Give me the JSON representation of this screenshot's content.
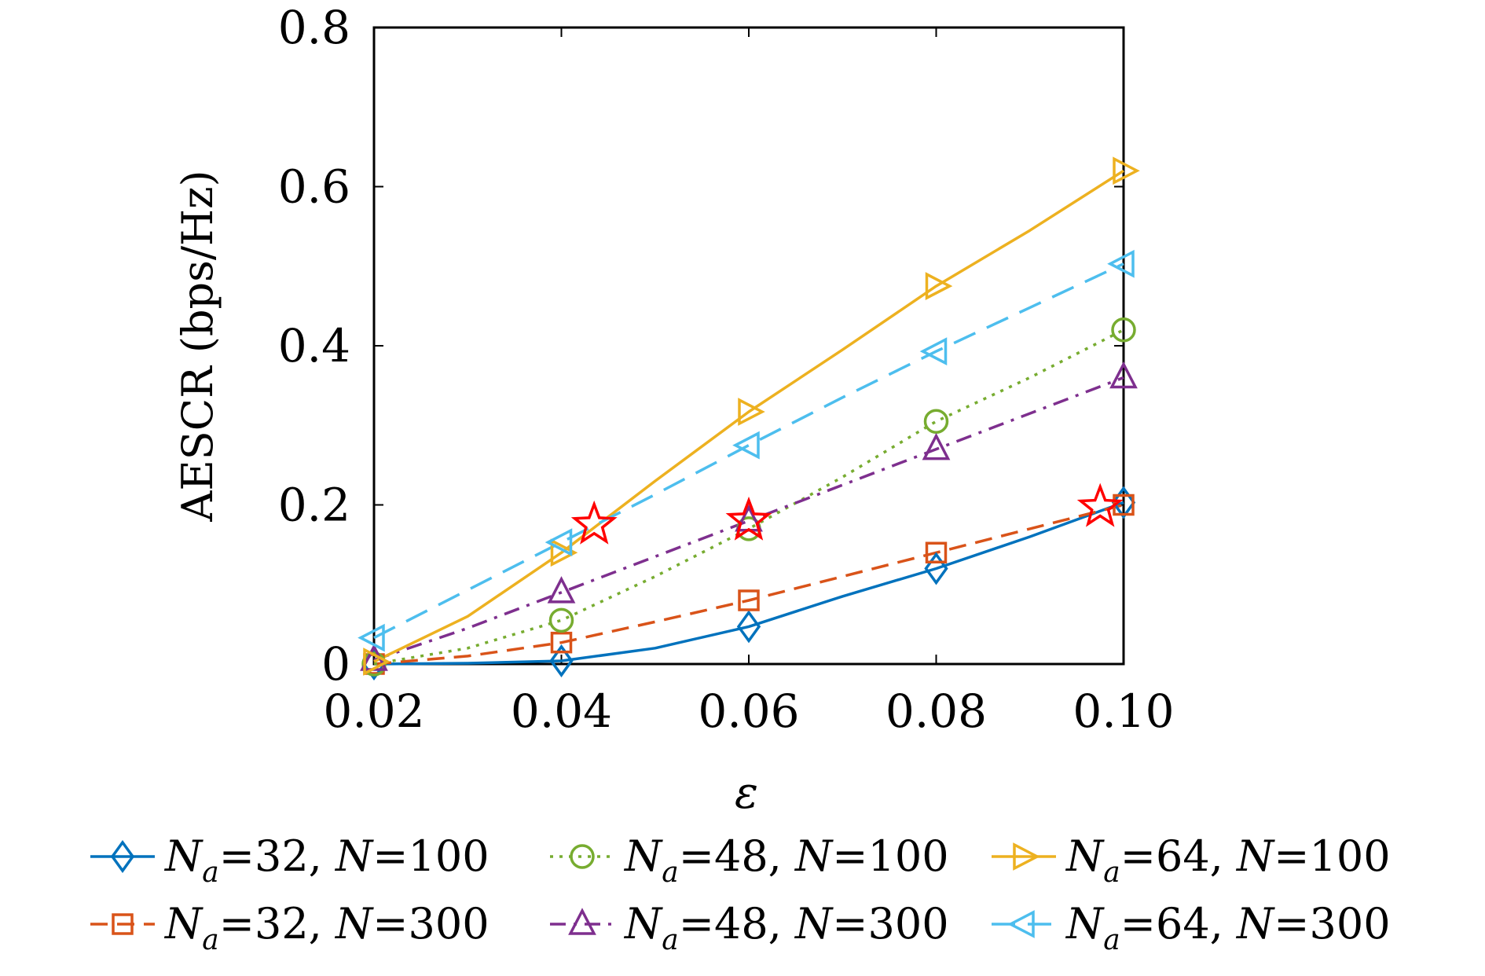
{
  "chart_data": {
    "type": "line",
    "title": "",
    "xlabel": "ε",
    "ylabel": "AESCR (bps/Hz)",
    "xlim": [
      0.02,
      0.1
    ],
    "ylim": [
      0,
      0.8
    ],
    "xticks": [
      "0.02",
      "0.04",
      "0.06",
      "0.08",
      "0.10"
    ],
    "yticks": [
      "0",
      "0.2",
      "0.4",
      "0.6",
      "0.8"
    ],
    "grid": false,
    "legend_position": "bottom",
    "series": [
      {
        "label": "N_a=32, N=100",
        "label_parts": {
          "n": "N",
          "sub": "a",
          "na_value": "=32,",
          "n2": "N",
          "n_value": "=100"
        },
        "color": "#0072BD",
        "dash": "solid",
        "marker": "diamond",
        "x": [
          0.02,
          0.03,
          0.04,
          0.05,
          0.06,
          0.07,
          0.08,
          0.09,
          0.1
        ],
        "y": [
          0.0,
          0.001,
          0.004,
          0.02,
          0.047,
          0.085,
          0.12,
          0.16,
          0.203
        ],
        "marker_x": [
          0.02,
          0.04,
          0.06,
          0.08,
          0.1
        ]
      },
      {
        "label": "N_a=32, N=300",
        "label_parts": {
          "n": "N",
          "sub": "a",
          "na_value": "=32,",
          "n2": "N",
          "n_value": "=300"
        },
        "color": "#D95319",
        "dash": "dashed",
        "marker": "square",
        "x": [
          0.02,
          0.03,
          0.04,
          0.05,
          0.06,
          0.07,
          0.08,
          0.09,
          0.1
        ],
        "y": [
          0.0,
          0.01,
          0.027,
          0.053,
          0.08,
          0.11,
          0.14,
          0.17,
          0.2
        ],
        "marker_x": [
          0.02,
          0.04,
          0.06,
          0.08,
          0.1
        ]
      },
      {
        "label": "N_a=48, N=100",
        "label_parts": {
          "n": "N",
          "sub": "a",
          "na_value": "=48,",
          "n2": "N",
          "n_value": "=100"
        },
        "color": "#77AC30",
        "dash": "dotted",
        "marker": "circle",
        "x": [
          0.02,
          0.03,
          0.04,
          0.05,
          0.06,
          0.07,
          0.08,
          0.09,
          0.1
        ],
        "y": [
          0.0,
          0.02,
          0.055,
          0.11,
          0.17,
          0.235,
          0.305,
          0.36,
          0.42
        ],
        "marker_x": [
          0.02,
          0.04,
          0.06,
          0.08,
          0.1
        ]
      },
      {
        "label": "N_a=48, N=300",
        "label_parts": {
          "n": "N",
          "sub": "a",
          "na_value": "=48,",
          "n2": "N",
          "n_value": "=300"
        },
        "color": "#7E2F8E",
        "dash": "dashdot",
        "marker": "triangle-up",
        "x": [
          0.02,
          0.03,
          0.04,
          0.05,
          0.06,
          0.07,
          0.08,
          0.09,
          0.1
        ],
        "y": [
          0.005,
          0.045,
          0.09,
          0.135,
          0.18,
          0.225,
          0.27,
          0.315,
          0.36
        ],
        "marker_x": [
          0.02,
          0.04,
          0.06,
          0.08,
          0.1
        ]
      },
      {
        "label": "N_a=64, N=100",
        "label_parts": {
          "n": "N",
          "sub": "a",
          "na_value": "=64,",
          "n2": "N",
          "n_value": "=100"
        },
        "color": "#EDB120",
        "dash": "solid",
        "marker": "triangle-right",
        "x": [
          0.02,
          0.03,
          0.04,
          0.05,
          0.06,
          0.07,
          0.08,
          0.09,
          0.1
        ],
        "y": [
          0.003,
          0.06,
          0.14,
          0.23,
          0.317,
          0.395,
          0.475,
          0.545,
          0.62
        ],
        "marker_x": [
          0.02,
          0.04,
          0.06,
          0.08,
          0.1
        ]
      },
      {
        "label": "N_a=64, N=300",
        "label_parts": {
          "n": "N",
          "sub": "a",
          "na_value": "=64,",
          "n2": "N",
          "n_value": "=300"
        },
        "color": "#4DBEEE",
        "dash": "longdash",
        "marker": "triangle-left",
        "x": [
          0.02,
          0.03,
          0.04,
          0.05,
          0.06,
          0.07,
          0.08,
          0.09,
          0.1
        ],
        "y": [
          0.033,
          0.093,
          0.153,
          0.213,
          0.275,
          0.335,
          0.393,
          0.448,
          0.503
        ],
        "marker_x": [
          0.02,
          0.04,
          0.06,
          0.08,
          0.1
        ]
      }
    ],
    "annotations": {
      "marker": "star",
      "color": "#FF0000",
      "points": [
        {
          "x": 0.0435,
          "y": 0.175
        },
        {
          "x": 0.06,
          "y": 0.18
        },
        {
          "x": 0.0975,
          "y": 0.197
        }
      ]
    }
  }
}
